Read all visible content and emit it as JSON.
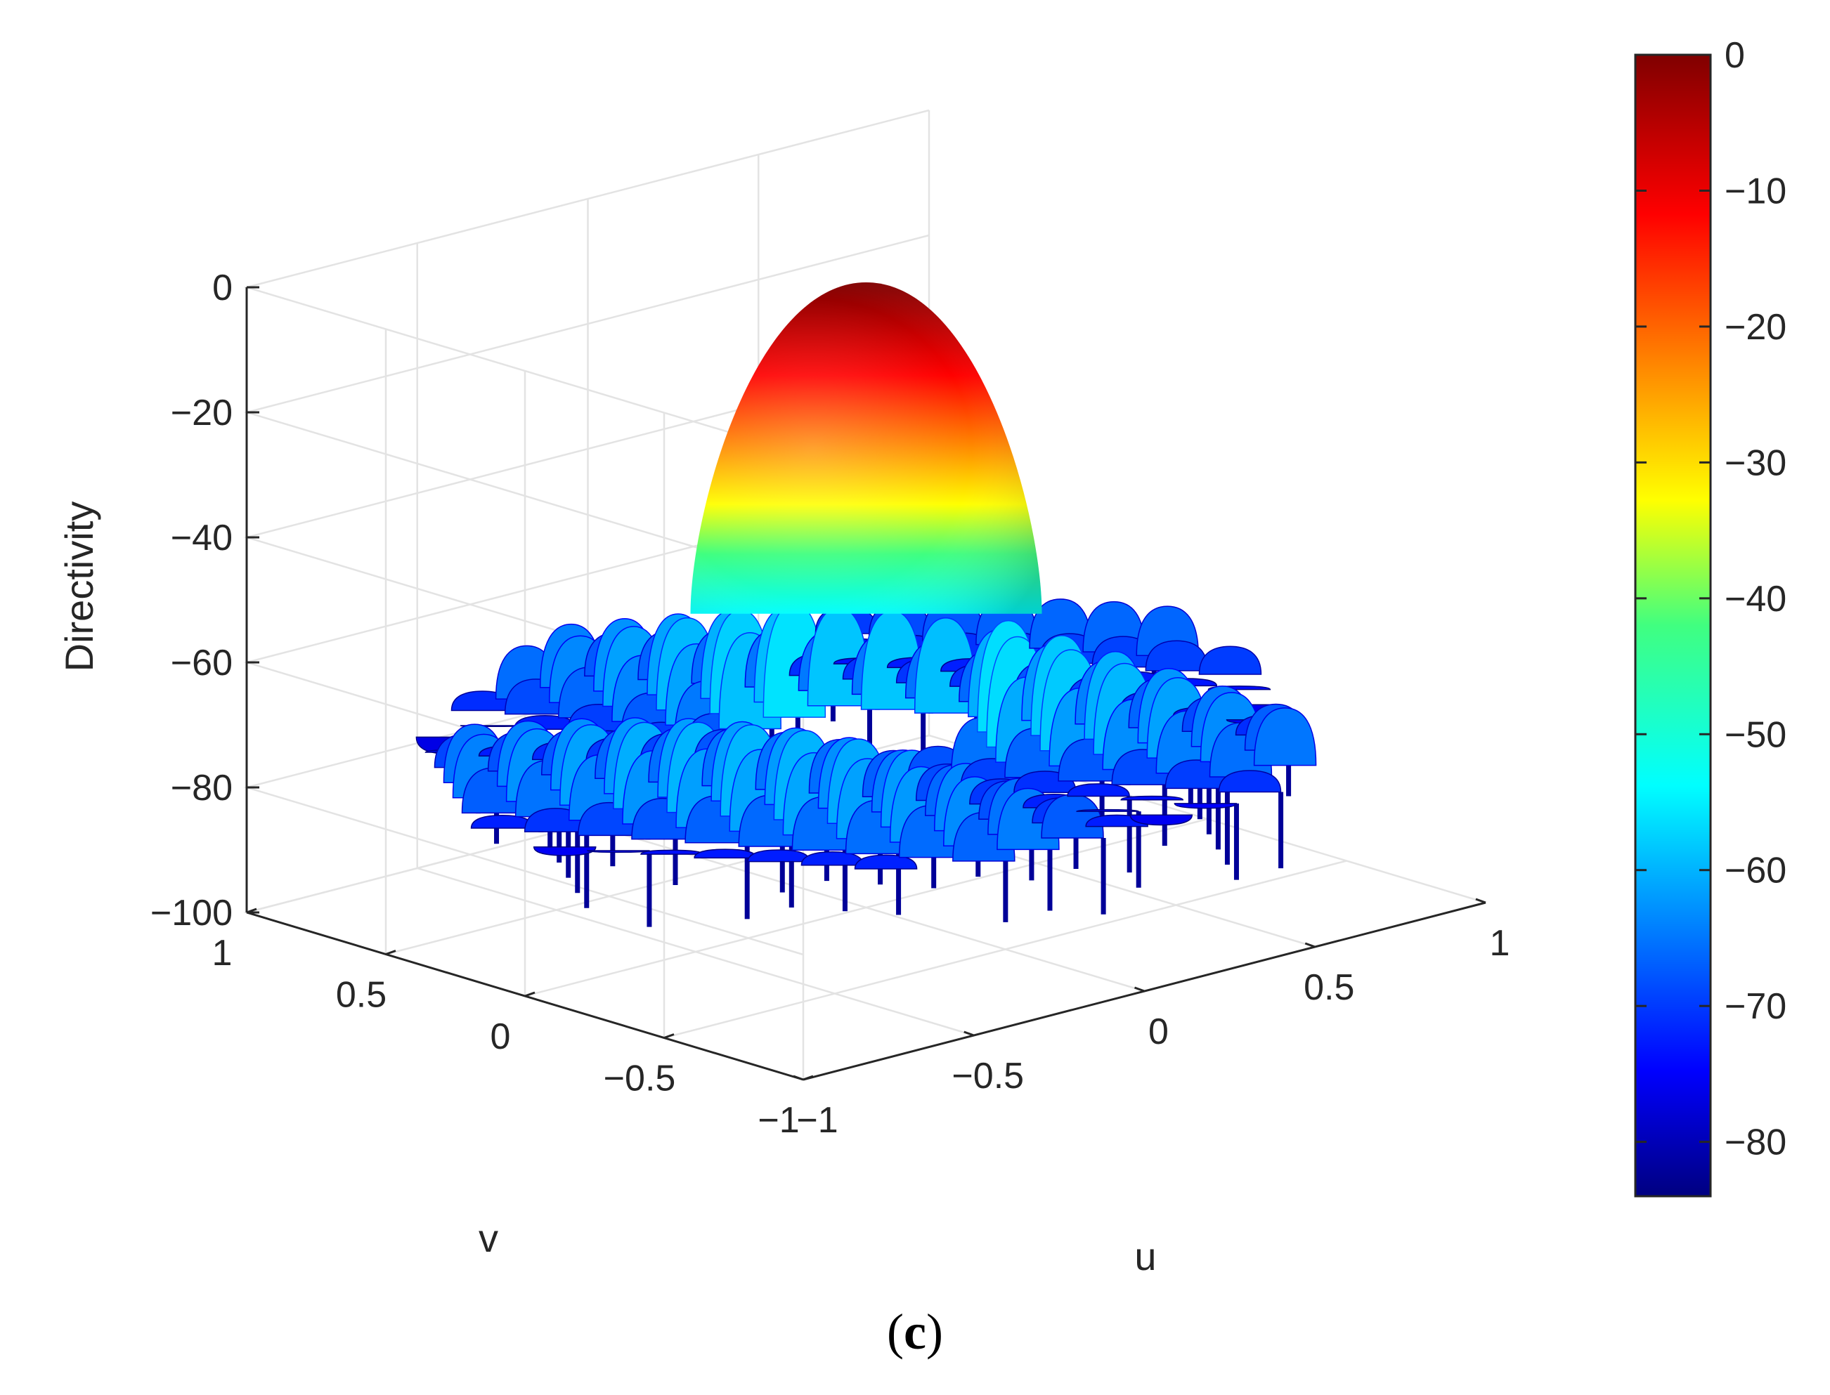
{
  "chart_data": {
    "type": "surface",
    "title": "",
    "panel_label": {
      "open": "(",
      "letter": "c",
      "close": ")"
    },
    "xlabel": "u",
    "ylabel": "v",
    "zlabel": "Directivity",
    "xlim": [
      -1,
      1
    ],
    "ylim": [
      -1,
      1
    ],
    "zlim": [
      -100,
      0
    ],
    "x_ticks": [
      -1,
      -0.5,
      0,
      0.5,
      1
    ],
    "x_tick_labels": [
      "−1",
      "−0.5",
      "0",
      "0.5",
      "1"
    ],
    "y_ticks": [
      -1,
      -0.5,
      0,
      0.5,
      1
    ],
    "y_tick_labels": [
      "−1",
      "−0.5",
      "0",
      "0.5",
      "1"
    ],
    "z_ticks": [
      -100,
      -80,
      -60,
      -40,
      -20,
      0
    ],
    "z_tick_labels": [
      "−100",
      "−80",
      "−60",
      "−40",
      "−20",
      "0"
    ],
    "grid": true,
    "surface": {
      "domain": "unit disk u²+v² ≤ 1",
      "main_lobe_center": [
        0,
        0
      ],
      "main_lobe_peak": 0,
      "sidelobe_level": -55,
      "null_depth": -85,
      "colormap": "jet"
    },
    "colorbar": {
      "range": [
        -84,
        0
      ],
      "ticks": [
        0,
        -10,
        -20,
        -30,
        -40,
        -50,
        -60,
        -70,
        -80
      ],
      "tick_labels": [
        "0",
        "−10",
        "−20",
        "−30",
        "−40",
        "−50",
        "−60",
        "−70",
        "−80"
      ],
      "colors": [
        "#800000",
        "#ff0000",
        "#ff8000",
        "#ffff00",
        "#80ff80",
        "#00ffff",
        "#0080ff",
        "#0000ff",
        "#000080"
      ]
    }
  }
}
